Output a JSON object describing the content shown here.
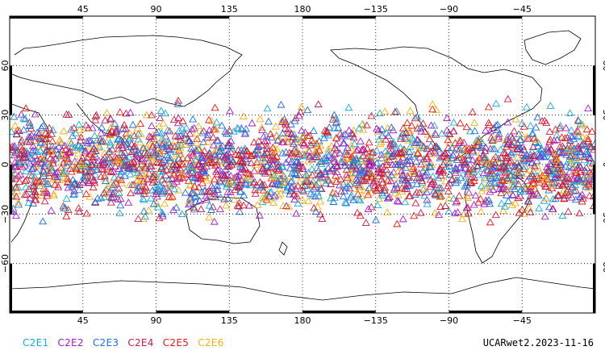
{
  "map": {
    "projection": "cylindrical-equidistant",
    "central_longitude": 180,
    "lon_range": [
      0,
      360
    ],
    "lat_range": [
      -90,
      90
    ],
    "marker_lat_band": [
      -42,
      42
    ],
    "marker_shape": "triangle-outline",
    "gridlines": "dotted",
    "frame_style": "checkered-border",
    "top_tick_labels": [
      "45",
      "90",
      "135",
      "180",
      "−135",
      "−90",
      "−45"
    ],
    "bottom_tick_labels": [
      "45",
      "90",
      "135",
      "180",
      "−135",
      "−90",
      "−45"
    ],
    "left_tick_labels": [
      "60",
      "30",
      "0",
      "−30",
      "−60"
    ],
    "right_tick_labels": [
      "60",
      "30",
      "0",
      "−30",
      "−60"
    ],
    "lon_ticks": [
      45,
      90,
      135,
      180,
      225,
      270,
      315
    ],
    "lat_ticks": [
      60,
      30,
      0,
      -30,
      -60
    ]
  },
  "legend": {
    "series": [
      {
        "name": "C2E1",
        "color": "#1ea7d6"
      },
      {
        "name": "C2E2",
        "color": "#a21fc4"
      },
      {
        "name": "C2E3",
        "color": "#1f6fd6"
      },
      {
        "name": "C2E4",
        "color": "#c41f49"
      },
      {
        "name": "C2E5",
        "color": "#e01b1b"
      },
      {
        "name": "C2E6",
        "color": "#f2b01b"
      }
    ]
  },
  "caption": "UCARwet2.2023-11-16"
}
